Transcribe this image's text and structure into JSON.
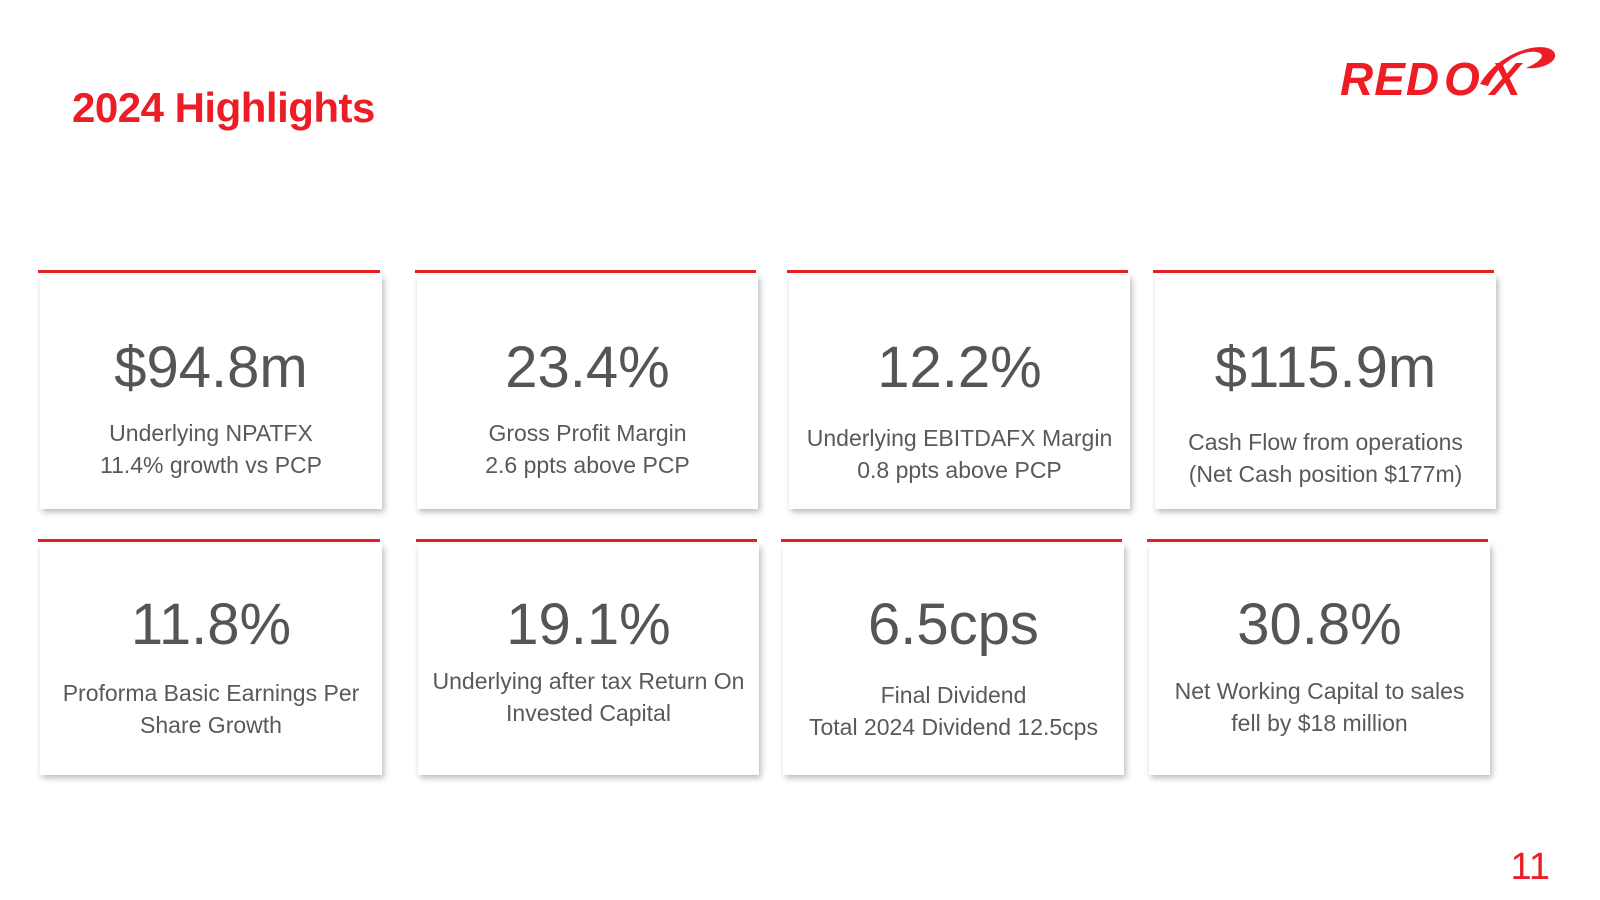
{
  "slide": {
    "title": "2024 Highlights",
    "page_number": "11",
    "logo": {
      "text": "REDOX",
      "color": "#ee1c25"
    },
    "accent_color": "#e51f26"
  },
  "cards": [
    {
      "value": "$94.8m",
      "line1": "Underlying NPATFX",
      "line2": "11.4% growth vs PCP"
    },
    {
      "value": "23.4%",
      "line1": "Gross Profit Margin",
      "line2": "2.6 ppts above PCP"
    },
    {
      "value": "12.2%",
      "line1": "Underlying EBITDAFX Margin",
      "line2": "0.8 ppts above PCP"
    },
    {
      "value": "$115.9m",
      "line1": "Cash Flow from operations",
      "line2": "(Net Cash position $177m)"
    },
    {
      "value": "11.8%",
      "line1": "Proforma Basic Earnings Per",
      "line2": "Share Growth"
    },
    {
      "value": "19.1%",
      "line1": "Underlying after tax Return On",
      "line2": "Invested Capital"
    },
    {
      "value": "6.5cps",
      "line1": "Final Dividend",
      "line2": "Total 2024 Dividend 12.5cps"
    },
    {
      "value": "30.8%",
      "line1": "Net Working Capital to sales",
      "line2": "fell by $18 million"
    }
  ]
}
